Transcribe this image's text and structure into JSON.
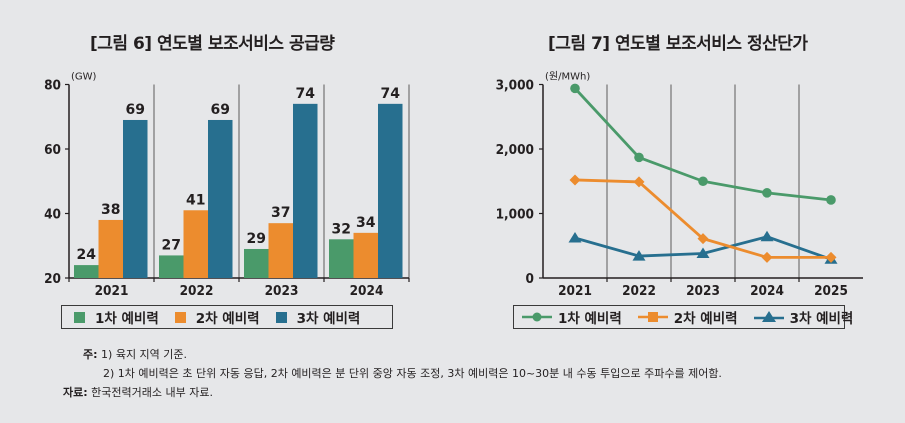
{
  "titles": {
    "left": "[그림 6] 연도별 보조서비스 공급량",
    "right": "[그림 7] 연도별 보조서비스 정산단가"
  },
  "notes": {
    "label": "주:",
    "lines": [
      "1) 육지 지역 기준.",
      "2) 1차 예비력은 초 단위 자동 응답, 2차 예비력은 분 단위 중앙 자동 조정, 3차 예비력은 10~30분 내 수동 투입으로 주파수를 제어함."
    ],
    "source_label": "자료:",
    "source": "한국전력거래소 내부 자료."
  },
  "colors": {
    "green": "#4a9a6a",
    "orange": "#ec8c2e",
    "blue": "#276f8f"
  },
  "chart_data": [
    {
      "type": "bar",
      "title": "[그림 6] 연도별 보조서비스 공급량",
      "unit": "(GW)",
      "categories": [
        "2021",
        "2022",
        "2023",
        "2024"
      ],
      "series": [
        {
          "name": "1차 예비력",
          "color": "#4a9a6a",
          "values": [
            24,
            27,
            29,
            32
          ]
        },
        {
          "name": "2차 예비력",
          "color": "#ec8c2e",
          "values": [
            38,
            41,
            37,
            34
          ]
        },
        {
          "name": "3차 예비력",
          "color": "#276f8f",
          "values": [
            69,
            69,
            74,
            74
          ]
        }
      ],
      "ylim": [
        20,
        80
      ],
      "yticks": [
        20,
        40,
        60,
        80
      ],
      "legend": "bottom"
    },
    {
      "type": "line",
      "title": "[그림 7] 연도별 보조서비스 정산단가",
      "unit": "(원/MWh)",
      "categories": [
        "2021",
        "2022",
        "2023",
        "2024",
        "2025"
      ],
      "series": [
        {
          "name": "1차 예비력",
          "color": "#4a9a6a",
          "marker": "circle",
          "values": [
            2940,
            1870,
            1500,
            1320,
            1210
          ]
        },
        {
          "name": "2차 예비력",
          "color": "#ec8c2e",
          "marker": "diamond",
          "values": [
            1520,
            1490,
            610,
            320,
            320
          ]
        },
        {
          "name": "3차 예비력",
          "color": "#276f8f",
          "marker": "triangle",
          "values": [
            620,
            340,
            380,
            640,
            290
          ]
        }
      ],
      "ylim": [
        0,
        3000
      ],
      "yticks": [
        0,
        1000,
        2000,
        3000
      ],
      "ytick_labels": [
        "0",
        "1,000",
        "2,000",
        "3,000"
      ],
      "legend": "bottom"
    }
  ]
}
